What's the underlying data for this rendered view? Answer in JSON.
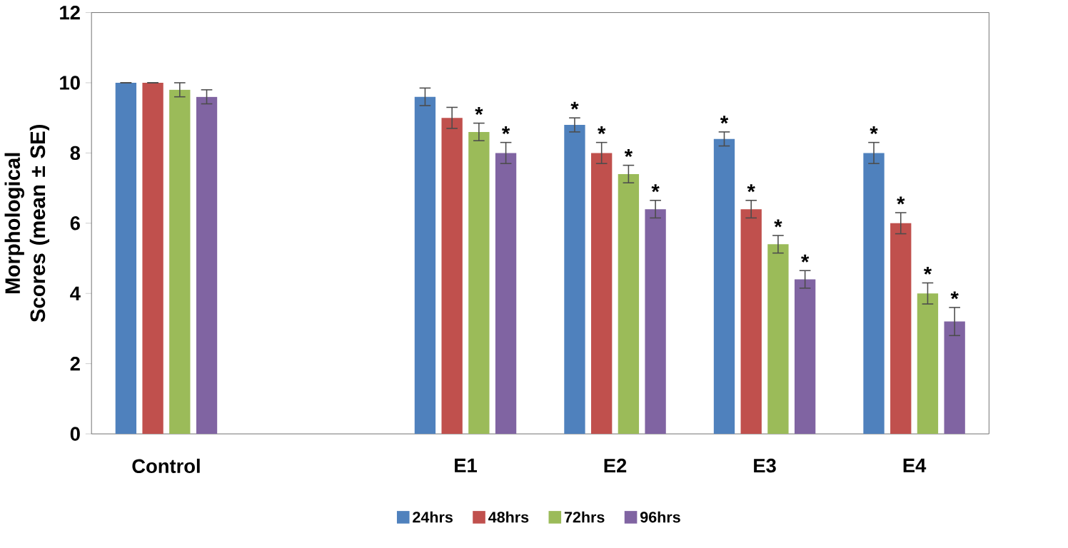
{
  "chart_data": {
    "type": "bar",
    "ylabel": "Morphological Scores (mean ± SE)",
    "categories": [
      "Control",
      null,
      "E1",
      "E2",
      "E3",
      "E4"
    ],
    "ylim": [
      0,
      12
    ],
    "yticks": [
      0,
      2,
      4,
      6,
      8,
      10,
      12
    ],
    "legend": "bottom",
    "grid": false,
    "series": [
      {
        "name": "24hrs",
        "color": "#4f81bd",
        "values": [
          10,
          null,
          9.6,
          8.8,
          8.4,
          8.0
        ],
        "errors": [
          0,
          null,
          0.25,
          0.2,
          0.2,
          0.3
        ],
        "value_labels": [
          null,
          null,
          null,
          "*",
          "*",
          "*"
        ]
      },
      {
        "name": "48hrs",
        "color": "#c0504d",
        "values": [
          10,
          null,
          9.0,
          8.0,
          6.4,
          6.0
        ],
        "errors": [
          0,
          null,
          0.3,
          0.3,
          0.25,
          0.3
        ],
        "value_labels": [
          null,
          null,
          null,
          "*",
          "*",
          "*"
        ]
      },
      {
        "name": "72hrs",
        "color": "#9bbb59",
        "values": [
          9.8,
          null,
          8.6,
          7.4,
          5.4,
          4.0
        ],
        "errors": [
          0.2,
          null,
          0.25,
          0.25,
          0.25,
          0.3
        ],
        "value_labels": [
          null,
          null,
          "*",
          "*",
          "*",
          "*"
        ]
      },
      {
        "name": "96hrs",
        "color": "#8064a2",
        "values": [
          9.6,
          null,
          8.0,
          6.4,
          4.4,
          3.2
        ],
        "errors": [
          0.2,
          null,
          0.3,
          0.25,
          0.25,
          0.4
        ],
        "value_labels": [
          null,
          null,
          "*",
          "*",
          "*",
          "*"
        ]
      }
    ]
  }
}
